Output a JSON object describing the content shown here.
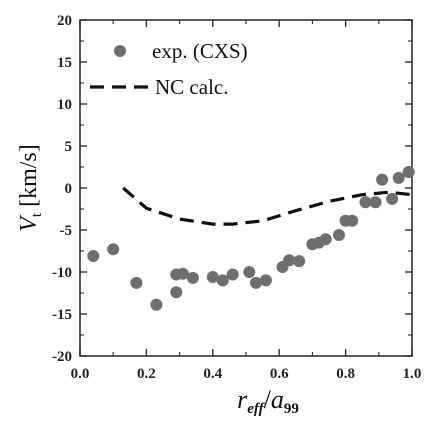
{
  "chart_data": {
    "type": "scatter",
    "xlabel": {
      "main": "r",
      "sub": "eff",
      "sep": "/",
      "main2": "a",
      "sub2": "99"
    },
    "ylabel": {
      "main": "V",
      "sub": "t",
      "unit": " [km/s]"
    },
    "xlim": [
      0.0,
      1.0
    ],
    "ylim": [
      -20,
      20
    ],
    "x_ticks": [
      "0.0",
      "0.2",
      "0.4",
      "0.6",
      "0.8",
      "1.0"
    ],
    "y_ticks": [
      "-20",
      "-15",
      "-10",
      "-5",
      "0",
      "5",
      "10",
      "15",
      "20"
    ],
    "grid": false,
    "legend_position": "top-left",
    "colors": {
      "points": "#6e6e6e",
      "line": "#111111",
      "axes": "#222222"
    },
    "series": [
      {
        "name": "exp. (CXS)",
        "style": "markers",
        "points": [
          [
            0.04,
            -8.1
          ],
          [
            0.1,
            -7.3
          ],
          [
            0.17,
            -11.3
          ],
          [
            0.23,
            -13.9
          ],
          [
            0.29,
            -12.4
          ],
          [
            0.29,
            -10.3
          ],
          [
            0.31,
            -10.2
          ],
          [
            0.34,
            -10.7
          ],
          [
            0.4,
            -10.6
          ],
          [
            0.43,
            -11.0
          ],
          [
            0.46,
            -10.3
          ],
          [
            0.51,
            -10.0
          ],
          [
            0.53,
            -11.3
          ],
          [
            0.56,
            -11.0
          ],
          [
            0.61,
            -9.4
          ],
          [
            0.63,
            -8.6
          ],
          [
            0.66,
            -8.7
          ],
          [
            0.7,
            -6.7
          ],
          [
            0.72,
            -6.5
          ],
          [
            0.74,
            -6.1
          ],
          [
            0.78,
            -5.6
          ],
          [
            0.8,
            -3.9
          ],
          [
            0.82,
            -3.9
          ],
          [
            0.86,
            -1.7
          ],
          [
            0.89,
            -1.7
          ],
          [
            0.91,
            1.0
          ],
          [
            0.94,
            -1.3
          ],
          [
            0.96,
            1.2
          ],
          [
            0.99,
            1.9
          ]
        ]
      },
      {
        "name": "NC calc.",
        "style": "dashed",
        "points": [
          [
            0.13,
            0.0
          ],
          [
            0.2,
            -2.4
          ],
          [
            0.3,
            -3.7
          ],
          [
            0.4,
            -4.3
          ],
          [
            0.46,
            -4.3
          ],
          [
            0.55,
            -3.9
          ],
          [
            0.65,
            -2.7
          ],
          [
            0.75,
            -1.6
          ],
          [
            0.85,
            -0.8
          ],
          [
            0.93,
            -0.5
          ],
          [
            1.0,
            -0.8
          ]
        ]
      }
    ]
  }
}
